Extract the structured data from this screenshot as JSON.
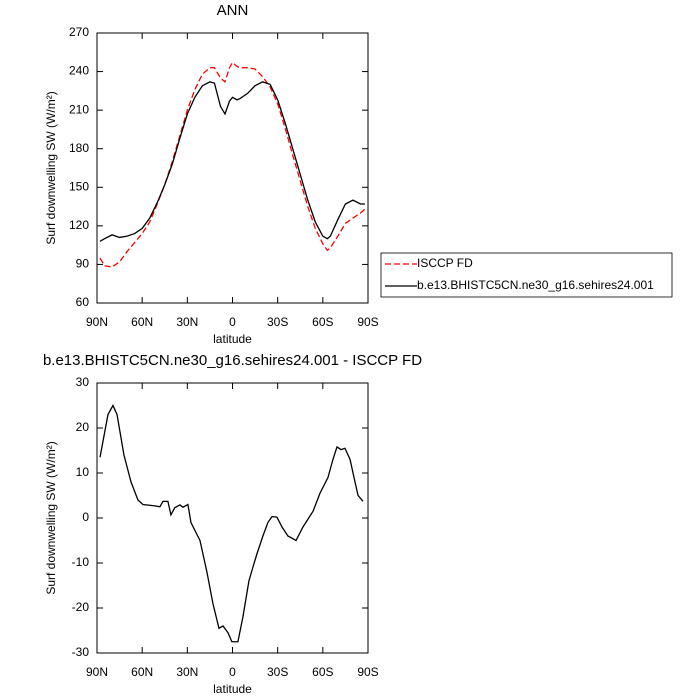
{
  "chart_data": [
    {
      "type": "line",
      "title": "ANN",
      "xlabel": "latitude",
      "ylabel": "Surf downwelling SW (W/m²)",
      "xlim": [
        90,
        -90
      ],
      "ylim": [
        60,
        270
      ],
      "xticks": [
        {
          "value": 90,
          "label": "90N"
        },
        {
          "value": 60,
          "label": "60N"
        },
        {
          "value": 30,
          "label": "30N"
        },
        0,
        {
          "value": -30,
          "label": "30S"
        },
        {
          "value": -60,
          "label": "60S"
        },
        {
          "value": -90,
          "label": "90S"
        }
      ],
      "yticks": [
        60,
        90,
        120,
        150,
        180,
        210,
        240,
        270
      ],
      "legend": "right",
      "x": [
        88,
        85,
        80,
        75,
        70,
        65,
        60,
        55,
        50,
        45,
        40,
        35,
        30,
        25,
        20,
        15,
        12,
        8,
        5,
        2,
        0,
        -3,
        -5,
        -10,
        -15,
        -20,
        -25,
        -30,
        -35,
        -40,
        -45,
        -50,
        -55,
        -60,
        -63,
        -65,
        -70,
        -75,
        -80,
        -85,
        -88
      ],
      "series": [
        {
          "name": "ISCCP FD",
          "color": "#ff0000",
          "dash": true,
          "values": [
            95,
            89,
            88,
            92,
            100,
            107,
            114,
            123,
            137,
            152,
            170,
            190,
            210,
            226,
            238,
            243,
            243,
            235,
            232,
            243,
            247,
            244,
            243,
            243,
            242,
            236,
            228,
            215,
            196,
            175,
            155,
            135,
            118,
            106,
            101,
            103,
            112,
            122,
            126,
            130,
            133
          ]
        },
        {
          "name": "b.e13.BHISTC5CN.ne30_g16.sehires24.001",
          "color": "#000000",
          "dash": false,
          "values": [
            108,
            110,
            113,
            111,
            112,
            114,
            118,
            126,
            138,
            152,
            168,
            188,
            207,
            220,
            229,
            232,
            231,
            213,
            207,
            217,
            220,
            218,
            219,
            223,
            229,
            232,
            230,
            218,
            200,
            180,
            160,
            140,
            123,
            112,
            110,
            112,
            125,
            137,
            140,
            137,
            137
          ]
        }
      ]
    },
    {
      "type": "line",
      "title": "b.e13.BHISTC5CN.ne30_g16.sehires24.001 - ISCCP FD",
      "xlabel": "latitude",
      "ylabel": "Surf downwelling SW (W/m²)",
      "xlim": [
        90,
        -90
      ],
      "ylim": [
        -30,
        30
      ],
      "xticks": [
        {
          "value": 90,
          "label": "90N"
        },
        {
          "value": 60,
          "label": "60N"
        },
        {
          "value": 30,
          "label": "30N"
        },
        0,
        {
          "value": -30,
          "label": "30S"
        },
        {
          "value": -60,
          "label": "60S"
        },
        {
          "value": -90,
          "label": "90S"
        }
      ],
      "yticks": [
        -30,
        -20,
        -10,
        0,
        10,
        20,
        30
      ],
      "x": [
        88,
        82.7,
        79.4,
        76.7,
        72.1,
        67.4,
        62.8,
        59.5,
        51.5,
        48.2,
        46.2,
        42.9,
        40.9,
        38.3,
        34.9,
        32.9,
        29.6,
        27.6,
        21.6,
        17,
        13,
        9,
        6.3,
        3,
        0.4,
        -3.6,
        -6.9,
        -10.9,
        -13.5,
        -16.2,
        -20.2,
        -23.5,
        -26.2,
        -29.5,
        -32.9,
        -36.8,
        -42.2,
        -46.8,
        -53.5,
        -58.1,
        -63.4,
        -66.7,
        -69.4,
        -72.1,
        -74.7,
        -78.1,
        -80.7,
        -83.4,
        -86.7
      ],
      "series": [
        {
          "name": null,
          "color": "#000000",
          "dash": false,
          "values": [
            13.5,
            23,
            25,
            23,
            14,
            8,
            4,
            3,
            2.7,
            2.5,
            3.7,
            3.7,
            0.7,
            2.3,
            2.9,
            2.4,
            3,
            -1,
            -5,
            -12,
            -19,
            -24.5,
            -24,
            -25.5,
            -27.5,
            -27.5,
            -22,
            -14,
            -11,
            -8,
            -4,
            -1,
            0.3,
            0.2,
            -2,
            -4,
            -5,
            -2,
            1.5,
            5.5,
            9,
            13,
            15.8,
            15.2,
            15.5,
            13,
            9,
            5,
            3.7
          ]
        }
      ]
    }
  ]
}
